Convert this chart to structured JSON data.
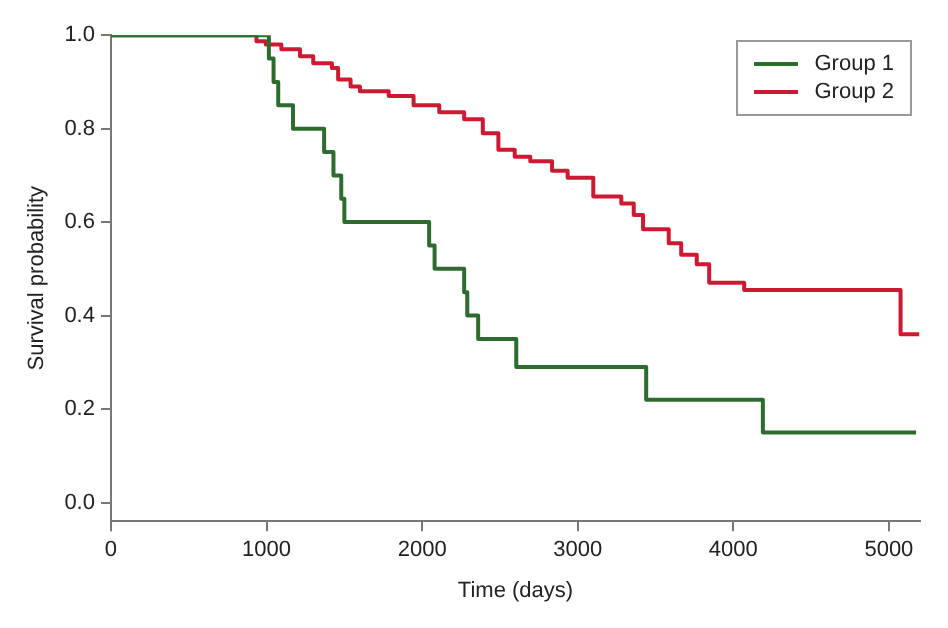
{
  "chart_data": {
    "type": "step",
    "xlabel": "Time (days)",
    "ylabel": "Survival probability",
    "xlim": [
      0,
      5200
    ],
    "xticks": [
      0,
      1000,
      2000,
      3000,
      4000,
      5000
    ],
    "ylim": [
      -0.04,
      1.0
    ],
    "yticks": [
      {
        "value": 0,
        "label": "0.0"
      },
      {
        "value": 0.2,
        "label": "0.2"
      },
      {
        "value": 0.4,
        "label": "0.4"
      },
      {
        "value": 0.6,
        "label": "0.6"
      },
      {
        "value": 0.8,
        "label": "0.8"
      },
      {
        "value": 1,
        "label": "1.0"
      }
    ],
    "grid": false,
    "legend": "top right",
    "marker": "none",
    "line_style": "solid",
    "series": [
      {
        "name": "Group 1",
        "color": "#2e6b2e",
        "x": [
          0,
          1015,
          1045,
          1075,
          1170,
          1370,
          1430,
          1480,
          1500,
          2045,
          2080,
          2270,
          2290,
          2360,
          2605,
          3440,
          4190,
          5175
        ],
        "values": [
          1.0,
          0.95,
          0.9,
          0.85,
          0.8,
          0.75,
          0.7,
          0.65,
          0.6,
          0.55,
          0.5,
          0.45,
          0.4,
          0.35,
          0.29,
          0.22,
          0.15,
          0.15
        ]
      },
      {
        "name": "Group 2",
        "color": "#cc1a33",
        "x": [
          0,
          935,
          995,
          1095,
          1215,
          1300,
          1420,
          1460,
          1540,
          1600,
          1785,
          1945,
          2110,
          2270,
          2390,
          2490,
          2595,
          2695,
          2835,
          2935,
          3100,
          3280,
          3360,
          3420,
          3585,
          3665,
          3765,
          3845,
          4070,
          5075,
          5195
        ],
        "values": [
          1.0,
          0.987,
          0.98,
          0.97,
          0.955,
          0.94,
          0.93,
          0.905,
          0.89,
          0.88,
          0.87,
          0.85,
          0.835,
          0.82,
          0.79,
          0.755,
          0.74,
          0.73,
          0.71,
          0.695,
          0.655,
          0.64,
          0.615,
          0.585,
          0.555,
          0.53,
          0.51,
          0.47,
          0.455,
          0.36,
          0.36
        ]
      }
    ]
  }
}
